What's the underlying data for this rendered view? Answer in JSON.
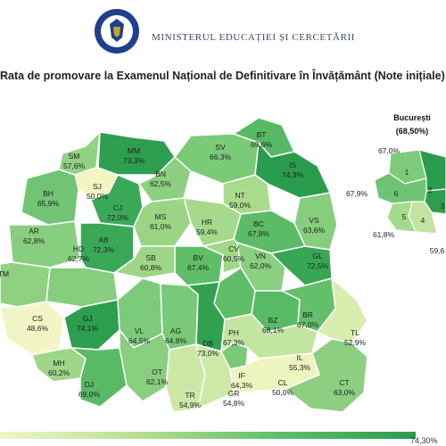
{
  "header": {
    "ministry": "MINISTERUL EDUCAȚIEI ȘI CERCETĂRII",
    "emblem_text": "GUVERNUL ROMÂNIEI"
  },
  "title": "Rata de promovare la Examenul Național de Definitivare în Învățământ (Note inițiale)",
  "colors": {
    "low": "#f2f6c6",
    "mid": "#7ccb7b",
    "high": "#2a9c4e",
    "border": "#ffffff"
  },
  "legend": {
    "max": "74,30%"
  },
  "counties": [
    {
      "code": "SM",
      "value": "57,6%"
    },
    {
      "code": "MM",
      "value": "73,3%"
    },
    {
      "code": "BT",
      "value": "69,6%"
    },
    {
      "code": "SV",
      "value": "66,3%"
    },
    {
      "code": "IS",
      "value": "74,3%"
    },
    {
      "code": "SJ",
      "value": "50,0%"
    },
    {
      "code": "BN",
      "value": "62,5%"
    },
    {
      "code": "BH",
      "value": "65,9%"
    },
    {
      "code": "CJ",
      "value": "72,0%"
    },
    {
      "code": "NT",
      "value": "59,0%"
    },
    {
      "code": "AR",
      "value": "62,8%"
    },
    {
      "code": "MS",
      "value": "61,0%"
    },
    {
      "code": "HR",
      "value": "59,4%"
    },
    {
      "code": "BC",
      "value": "67,8%"
    },
    {
      "code": "VS",
      "value": "63,6%"
    },
    {
      "code": "AB",
      "value": "72,3%"
    },
    {
      "code": "TM",
      "value": ""
    },
    {
      "code": "HD",
      "value": "62,7%"
    },
    {
      "code": "SB",
      "value": "60,8%"
    },
    {
      "code": "BV",
      "value": "67,4%"
    },
    {
      "code": "CV",
      "value": "60,5%"
    },
    {
      "code": "VN",
      "value": "62,0%"
    },
    {
      "code": "GL",
      "value": "72,5%"
    },
    {
      "code": "CS",
      "value": "48,6%"
    },
    {
      "code": "GJ",
      "value": "74,1%"
    },
    {
      "code": "VL",
      "value": "64,5%"
    },
    {
      "code": "AG",
      "value": "64,8%"
    },
    {
      "code": "PH",
      "value": "67,3%"
    },
    {
      "code": "BZ",
      "value": "68,1%"
    },
    {
      "code": "BR",
      "value": "67,0%"
    },
    {
      "code": "TL",
      "value": "52,9%"
    },
    {
      "code": "MH",
      "value": "60,2%"
    },
    {
      "code": "DB",
      "value": "73,0%"
    },
    {
      "code": "IL",
      "value": "55,3%"
    },
    {
      "code": "DJ",
      "value": "69,0%"
    },
    {
      "code": "OT",
      "value": "62,1%"
    },
    {
      "code": "TR",
      "value": "54,9%"
    },
    {
      "code": "GR",
      "value": "54,8%"
    },
    {
      "code": "IF",
      "value": "64,3%"
    },
    {
      "code": "CL",
      "value": "50,0%"
    },
    {
      "code": "CT",
      "value": "63,0%"
    }
  ],
  "bucuresti": {
    "title": "București",
    "total": "(68,50%)",
    "sectors": [
      {
        "code": "1",
        "value": "67,0%"
      },
      {
        "code": "2",
        "value": ""
      },
      {
        "code": "3",
        "value": ""
      },
      {
        "code": "4",
        "value": "59,6"
      },
      {
        "code": "5",
        "value": "61,8%"
      },
      {
        "code": "6",
        "value": "67,9%"
      }
    ]
  }
}
